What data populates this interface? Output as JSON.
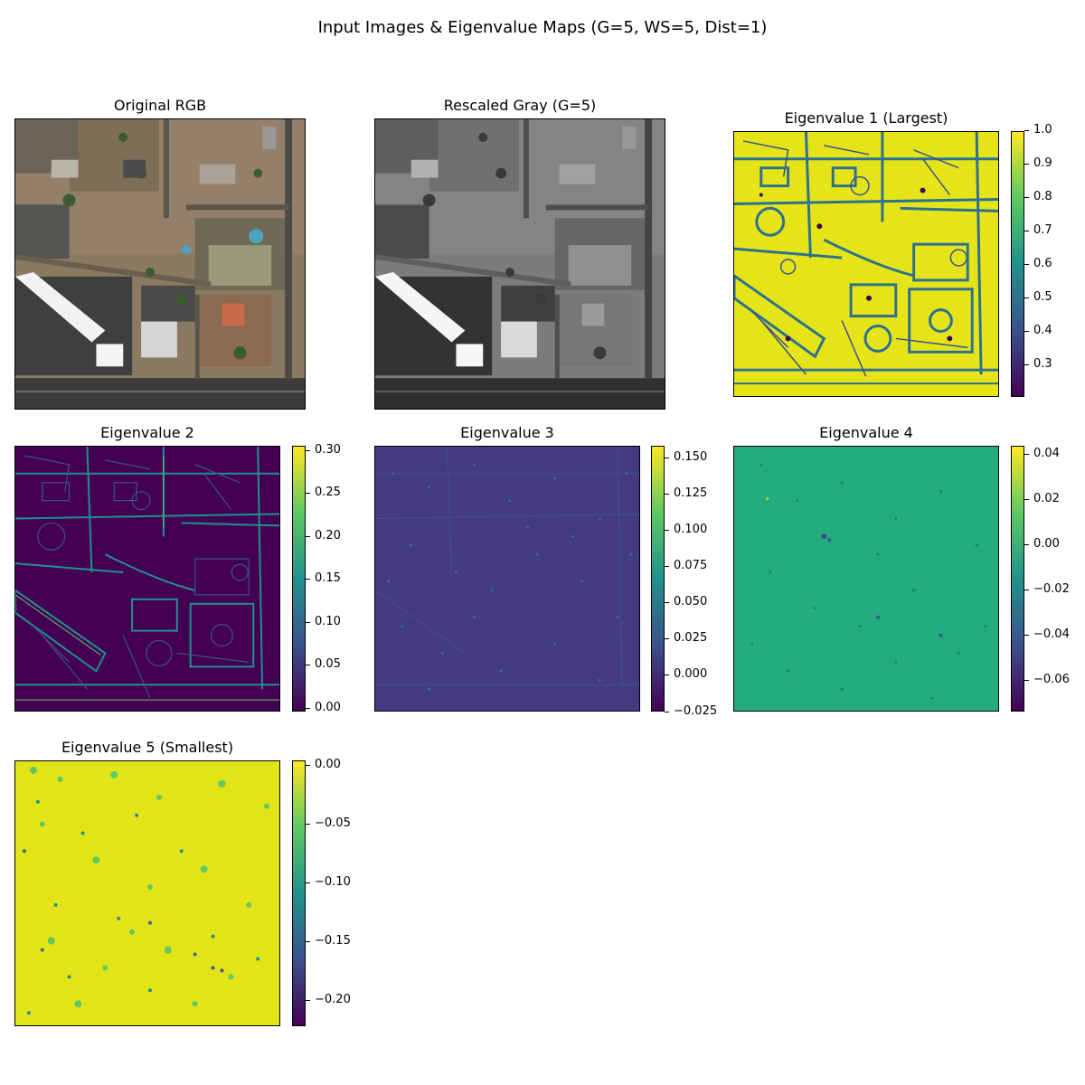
{
  "figure": {
    "suptitle": "Input Images & Eigenvalue Maps (G=5, WS=5, Dist=1)"
  },
  "panels": [
    {
      "title": "Original RGB"
    },
    {
      "title": "Rescaled Gray (G=5)"
    },
    {
      "title": "Eigenvalue 1 (Largest)",
      "colorbar_ticks": [
        "1.0",
        "0.9",
        "0.8",
        "0.7",
        "0.6",
        "0.5",
        "0.4",
        "0.3"
      ],
      "range": [
        0.2,
        1.0
      ]
    },
    {
      "title": "Eigenvalue 2",
      "colorbar_ticks": [
        "0.30",
        "0.25",
        "0.20",
        "0.15",
        "0.10",
        "0.05",
        "0.00"
      ],
      "range": [
        -0.005,
        0.305
      ]
    },
    {
      "title": "Eigenvalue 3",
      "colorbar_ticks": [
        "0.150",
        "0.125",
        "0.100",
        "0.075",
        "0.050",
        "0.025",
        "0.000",
        "−0.025"
      ],
      "range": [
        -0.025,
        0.16
      ]
    },
    {
      "title": "Eigenvalue 4",
      "colorbar_ticks": [
        "0.04",
        "0.02",
        "0.00",
        "−0.02",
        "−0.04",
        "−0.06"
      ],
      "range": [
        -0.073,
        0.045
      ]
    },
    {
      "title": "Eigenvalue 5 (Smallest)",
      "colorbar_ticks": [
        "0.00",
        "−0.05",
        "−0.10",
        "−0.15",
        "−0.20"
      ],
      "range": [
        -0.223,
        0.005
      ]
    }
  ],
  "colormap": {
    "name": "viridis",
    "stops": [
      "#440154",
      "#3b528b",
      "#21918c",
      "#5ec962",
      "#fde725"
    ]
  }
}
